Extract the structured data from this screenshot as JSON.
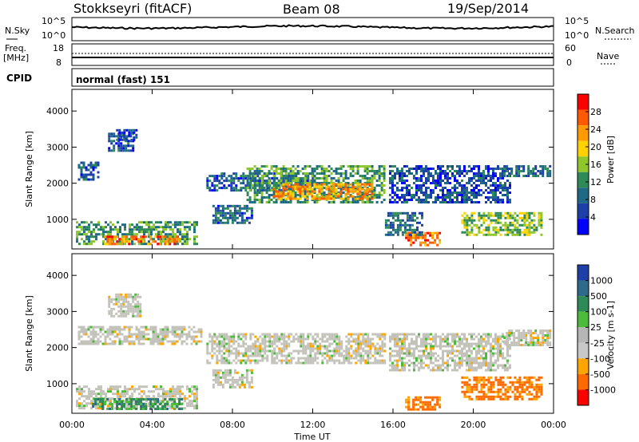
{
  "header": {
    "station": "Stokkseyri (fitACF)",
    "beam": "Beam 08",
    "date": "19/Sep/2014"
  },
  "top_panels": {
    "nsky_label": "N.Sky",
    "nsky_ticks": [
      "10^5",
      "10^0"
    ],
    "nsearch_label": "N.Search",
    "nsearch_ticks": [
      "10^5",
      "10^0"
    ],
    "freq_label_1": "Freq.",
    "freq_label_2": "[MHz]",
    "freq_ticks": [
      "18",
      "8"
    ],
    "nave_label": "Nave",
    "nave_ticks": [
      "60",
      "0"
    ],
    "cpid_label": "CPID",
    "cpid_value": "normal (fast) 151"
  },
  "x_axis": {
    "label": "Time UT",
    "ticks": [
      "00:00",
      "04:00",
      "08:00",
      "12:00",
      "16:00",
      "20:00",
      "00:00"
    ],
    "hours": [
      0,
      4,
      8,
      12,
      16,
      20,
      24
    ]
  },
  "chart_data": [
    {
      "type": "heatmap",
      "name": "power",
      "ylabel": "Slant Range [km]",
      "yticks": [
        1000,
        2000,
        3000,
        4000
      ],
      "ylim": [
        180,
        4600
      ],
      "xlim": [
        0,
        24
      ],
      "colorbar_label": "Power [dB]",
      "colorbar_ticks": [
        "28",
        "24",
        "20",
        "16",
        "12",
        "8",
        "4"
      ],
      "colorbar_colors": [
        "#ff0000",
        "#ff5a00",
        "#ff9a00",
        "#ffd200",
        "#8fc62b",
        "#2e8b57",
        "#1e6a86",
        "#1d3fa8",
        "#0000ff"
      ],
      "regions": [
        {
          "t": [
            0.2,
            6.2
          ],
          "r": [
            300,
            950
          ],
          "level": 12
        },
        {
          "t": [
            1.6,
            5.4
          ],
          "r": [
            300,
            550
          ],
          "level": 26
        },
        {
          "t": [
            0.3,
            1.3
          ],
          "r": [
            2100,
            2600
          ],
          "level": 6
        },
        {
          "t": [
            1.8,
            3.0
          ],
          "r": [
            2900,
            3400
          ],
          "level": 5
        },
        {
          "t": [
            2.2,
            3.2
          ],
          "r": [
            3200,
            3500
          ],
          "level": 5
        },
        {
          "t": [
            6.7,
            12.0
          ],
          "r": [
            1800,
            2300
          ],
          "level": 6
        },
        {
          "t": [
            8.7,
            15.6
          ],
          "r": [
            1500,
            2500
          ],
          "level": 12
        },
        {
          "t": [
            10.0,
            15.0
          ],
          "r": [
            1600,
            2000
          ],
          "level": 24
        },
        {
          "t": [
            7.0,
            9.0
          ],
          "r": [
            900,
            1400
          ],
          "level": 7
        },
        {
          "t": [
            16.6,
            18.3
          ],
          "r": [
            300,
            650
          ],
          "level": 26
        },
        {
          "t": [
            15.6,
            17.4
          ],
          "r": [
            550,
            1200
          ],
          "level": 8
        },
        {
          "t": [
            15.8,
            21.8
          ],
          "r": [
            1500,
            2500
          ],
          "level": 5
        },
        {
          "t": [
            19.4,
            23.4
          ],
          "r": [
            600,
            1200
          ],
          "level": 16
        },
        {
          "t": [
            21.5,
            23.8
          ],
          "r": [
            2200,
            2500
          ],
          "level": 8
        }
      ]
    },
    {
      "type": "heatmap",
      "name": "velocity",
      "ylabel": "Slant Range [km]",
      "yticks": [
        1000,
        2000,
        3000,
        4000
      ],
      "ylim": [
        180,
        4600
      ],
      "xlim": [
        0,
        24
      ],
      "colorbar_label": "Velocity [m s-1]",
      "colorbar_ticks": [
        "1000",
        "500",
        "100",
        "25",
        "-25",
        "-100",
        "-500",
        "-1000"
      ],
      "colorbar_colors": [
        "#1e3fa8",
        "#2e6a8a",
        "#2e8b57",
        "#4cbb3a",
        "#b6b6b6",
        "#c8c8c8",
        "#ffa500",
        "#ff6a00",
        "#ff0000"
      ],
      "regions": [
        {
          "t": [
            0.2,
            6.2
          ],
          "r": [
            300,
            950
          ],
          "v": 0
        },
        {
          "t": [
            1.0,
            5.5
          ],
          "r": [
            300,
            600
          ],
          "v": 150
        },
        {
          "t": [
            0.3,
            6.5
          ],
          "r": [
            2100,
            2600
          ],
          "v": 0
        },
        {
          "t": [
            1.8,
            3.4
          ],
          "r": [
            2900,
            3500
          ],
          "v": 0
        },
        {
          "t": [
            6.7,
            15.6
          ],
          "r": [
            1600,
            2400
          ],
          "v": 0
        },
        {
          "t": [
            7.0,
            9.0
          ],
          "r": [
            900,
            1400
          ],
          "v": 0
        },
        {
          "t": [
            16.6,
            18.3
          ],
          "r": [
            300,
            650
          ],
          "v": -300
        },
        {
          "t": [
            15.8,
            21.8
          ],
          "r": [
            1400,
            2400
          ],
          "v": 0
        },
        {
          "t": [
            19.4,
            23.4
          ],
          "r": [
            600,
            1200
          ],
          "v": -150
        },
        {
          "t": [
            21.5,
            23.8
          ],
          "r": [
            2100,
            2500
          ],
          "v": 0
        }
      ]
    }
  ]
}
